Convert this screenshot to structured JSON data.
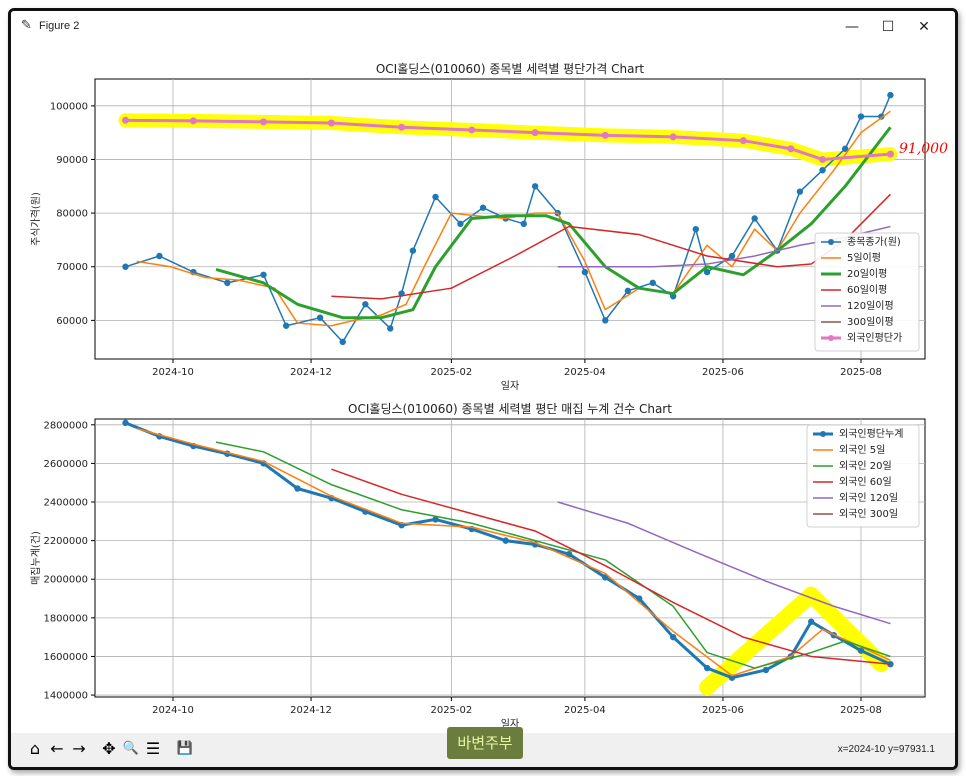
{
  "window": {
    "title": "Figure 2",
    "minimize": "—",
    "maximize": "☐",
    "close": "✕"
  },
  "toolbar": {
    "home": "⌂",
    "back": "←",
    "forward": "→",
    "pan": "✥",
    "zoom": "🔍",
    "configure": "☰",
    "save": "💾",
    "coords": "x=2024-10 y=97931.1",
    "watermark": "바변주부"
  },
  "annotation": "91,000",
  "colors": {
    "blue": "#1f77b4",
    "orange": "#ff7f0e",
    "green": "#2ca02c",
    "red": "#d62728",
    "purple": "#9467bd",
    "brown": "#8c564b",
    "pink": "#e377c2",
    "highlight": "#ffff00",
    "pen": "#ff0000"
  },
  "chart_data": [
    {
      "type": "line",
      "title": "OCI홀딩스(010060) 종목별 세력별 평단가격 Chart",
      "xlabel": "일자",
      "ylabel": "주식가격(원)",
      "xticks": [
        "2024-10",
        "2024-12",
        "2025-02",
        "2025-04",
        "2025-06",
        "2025-08"
      ],
      "yticks": [
        60000,
        70000,
        80000,
        90000,
        100000
      ],
      "ylim": [
        52800,
        105000
      ],
      "grid": true,
      "legend_position": "center-right",
      "series": [
        {
          "name": "종목종가(원)",
          "color": "#1f77b4",
          "marker": "o",
          "x": [
            "2024-09-10",
            "2024-09-25",
            "2024-10-10",
            "2024-10-25",
            "2024-11-10",
            "2024-11-20",
            "2024-12-05",
            "2024-12-15",
            "2024-12-25",
            "2025-01-05",
            "2025-01-10",
            "2025-01-15",
            "2025-01-25",
            "2025-02-05",
            "2025-02-15",
            "2025-02-25",
            "2025-03-05",
            "2025-03-10",
            "2025-03-20",
            "2025-04-01",
            "2025-04-10",
            "2025-04-20",
            "2025-05-01",
            "2025-05-10",
            "2025-05-20",
            "2025-05-25",
            "2025-06-05",
            "2025-06-15",
            "2025-06-25",
            "2025-07-05",
            "2025-07-15",
            "2025-07-25",
            "2025-08-01",
            "2025-08-10",
            "2025-08-14"
          ],
          "y": [
            70000,
            72000,
            69000,
            67000,
            68500,
            59000,
            60500,
            56000,
            63000,
            58500,
            65000,
            73000,
            83000,
            78000,
            81000,
            79000,
            78000,
            85000,
            80000,
            69000,
            60000,
            65500,
            67000,
            64500,
            77000,
            69000,
            72000,
            79000,
            73000,
            84000,
            88000,
            92000,
            98000,
            98000,
            102000
          ]
        },
        {
          "name": "5일이평",
          "color": "#ff7f0e",
          "x": [
            "2024-09-15",
            "2024-09-30",
            "2024-10-15",
            "2024-10-30",
            "2024-11-15",
            "2024-11-25",
            "2024-12-10",
            "2024-12-20",
            "2025-01-01",
            "2025-01-12",
            "2025-01-20",
            "2025-02-01",
            "2025-02-12",
            "2025-02-25",
            "2025-03-10",
            "2025-03-20",
            "2025-04-01",
            "2025-04-10",
            "2025-04-25",
            "2025-05-10",
            "2025-05-25",
            "2025-06-05",
            "2025-06-15",
            "2025-06-25",
            "2025-07-05",
            "2025-07-20",
            "2025-08-01",
            "2025-08-14"
          ],
          "y": [
            71000,
            70000,
            68000,
            67500,
            66000,
            59500,
            59000,
            60000,
            61000,
            63000,
            70000,
            80000,
            79500,
            79000,
            80000,
            80000,
            71000,
            62000,
            66000,
            65000,
            74000,
            70000,
            77000,
            73000,
            80000,
            88000,
            95000,
            99000
          ]
        },
        {
          "name": "20일이평",
          "color": "#2ca02c",
          "width": 3,
          "x": [
            "2024-10-20",
            "2024-11-10",
            "2024-11-25",
            "2024-12-15",
            "2025-01-01",
            "2025-01-15",
            "2025-01-25",
            "2025-02-10",
            "2025-02-25",
            "2025-03-15",
            "2025-03-25",
            "2025-04-10",
            "2025-04-25",
            "2025-05-10",
            "2025-05-25",
            "2025-06-10",
            "2025-06-25",
            "2025-07-10",
            "2025-07-25",
            "2025-08-14"
          ],
          "y": [
            69500,
            67000,
            63000,
            60500,
            60500,
            62000,
            70000,
            79000,
            79500,
            79500,
            78000,
            70000,
            66000,
            65000,
            70000,
            68500,
            73000,
            78000,
            85000,
            96000
          ]
        },
        {
          "name": "60일이평",
          "color": "#d62728",
          "x": [
            "2024-12-10",
            "2025-01-01",
            "2025-02-01",
            "2025-03-01",
            "2025-03-25",
            "2025-04-25",
            "2025-05-25",
            "2025-06-25",
            "2025-07-10",
            "2025-07-25",
            "2025-08-14"
          ],
          "y": [
            64500,
            64000,
            66000,
            72000,
            77500,
            76000,
            72000,
            70000,
            70500,
            75000,
            83500
          ]
        },
        {
          "name": "120일이평",
          "color": "#9467bd",
          "x": [
            "2025-03-20",
            "2025-04-10",
            "2025-05-01",
            "2025-05-25",
            "2025-06-15",
            "2025-07-05",
            "2025-07-25",
            "2025-08-14"
          ],
          "y": [
            70000,
            70000,
            70000,
            70500,
            72000,
            74000,
            75500,
            77500
          ]
        },
        {
          "name": "300일이평",
          "color": "#8c564b",
          "x": [],
          "y": []
        },
        {
          "name": "외국인평단가",
          "color": "#e377c2",
          "width": 3,
          "marker": "o",
          "x": [
            "2024-09-10",
            "2024-10-10",
            "2024-11-10",
            "2024-12-10",
            "2025-01-10",
            "2025-02-10",
            "2025-03-10",
            "2025-04-10",
            "2025-05-10",
            "2025-06-10",
            "2025-07-01",
            "2025-07-15",
            "2025-08-14"
          ],
          "y": [
            97300,
            97200,
            97000,
            96800,
            96000,
            95500,
            95000,
            94500,
            94200,
            93500,
            92000,
            90000,
            91000
          ]
        }
      ]
    },
    {
      "type": "line",
      "title": "OCI홀딩스(010060) 종목별 세력별 평단 매집 누계 건수 Chart",
      "xlabel": "일자",
      "ylabel": "매집누계(건)",
      "xticks": [
        "2024-10",
        "2024-12",
        "2025-02",
        "2025-04",
        "2025-06",
        "2025-08"
      ],
      "yticks": [
        1400000,
        1600000,
        1800000,
        2000000,
        2200000,
        2400000,
        2600000,
        2800000
      ],
      "ylim": [
        1390000,
        2830000
      ],
      "grid": true,
      "legend_position": "top-right",
      "series": [
        {
          "name": "외국인평단누계",
          "color": "#1f77b4",
          "marker": "o",
          "width": 3,
          "x": [
            "2024-09-10",
            "2024-09-25",
            "2024-10-10",
            "2024-10-25",
            "2024-11-10",
            "2024-11-25",
            "2024-12-10",
            "2024-12-25",
            "2025-01-10",
            "2025-01-25",
            "2025-02-10",
            "2025-02-25",
            "2025-03-10",
            "2025-03-25",
            "2025-04-10",
            "2025-04-25",
            "2025-05-10",
            "2025-05-25",
            "2025-06-05",
            "2025-06-20",
            "2025-07-01",
            "2025-07-10",
            "2025-07-20",
            "2025-08-01",
            "2025-08-14"
          ],
          "y": [
            2810000,
            2740000,
            2690000,
            2650000,
            2600000,
            2470000,
            2420000,
            2350000,
            2280000,
            2310000,
            2260000,
            2200000,
            2180000,
            2130000,
            2010000,
            1900000,
            1700000,
            1540000,
            1490000,
            1530000,
            1600000,
            1780000,
            1710000,
            1630000,
            1560000
          ]
        },
        {
          "name": "외국인 5일",
          "color": "#ff7f0e",
          "x": [
            "2024-09-15",
            "2024-10-10",
            "2024-11-10",
            "2024-12-10",
            "2025-01-10",
            "2025-02-10",
            "2025-03-10",
            "2025-04-10",
            "2025-05-10",
            "2025-06-05",
            "2025-07-01",
            "2025-07-15",
            "2025-08-14"
          ],
          "y": [
            2780000,
            2700000,
            2610000,
            2430000,
            2290000,
            2270000,
            2190000,
            2030000,
            1730000,
            1500000,
            1600000,
            1740000,
            1580000
          ]
        },
        {
          "name": "외국인 20일",
          "color": "#2ca02c",
          "x": [
            "2024-10-20",
            "2024-11-10",
            "2024-12-10",
            "2025-01-10",
            "2025-02-10",
            "2025-03-10",
            "2025-04-10",
            "2025-05-10",
            "2025-05-25",
            "2025-06-15",
            "2025-07-10",
            "2025-07-25",
            "2025-08-14"
          ],
          "y": [
            2710000,
            2660000,
            2490000,
            2360000,
            2290000,
            2200000,
            2100000,
            1860000,
            1620000,
            1540000,
            1620000,
            1680000,
            1600000
          ]
        },
        {
          "name": "외국인 60일",
          "color": "#d62728",
          "x": [
            "2024-12-10",
            "2025-01-10",
            "2025-02-10",
            "2025-03-10",
            "2025-04-10",
            "2025-05-10",
            "2025-06-10",
            "2025-07-10",
            "2025-08-14"
          ],
          "y": [
            2570000,
            2440000,
            2340000,
            2250000,
            2070000,
            1880000,
            1700000,
            1600000,
            1560000
          ]
        },
        {
          "name": "외국인 120일",
          "color": "#9467bd",
          "x": [
            "2025-03-20",
            "2025-04-20",
            "2025-05-20",
            "2025-06-20",
            "2025-07-20",
            "2025-08-14"
          ],
          "y": [
            2400000,
            2290000,
            2140000,
            1990000,
            1860000,
            1770000
          ]
        },
        {
          "name": "외국인 300일",
          "color": "#8c564b",
          "x": [],
          "y": []
        }
      ]
    }
  ]
}
